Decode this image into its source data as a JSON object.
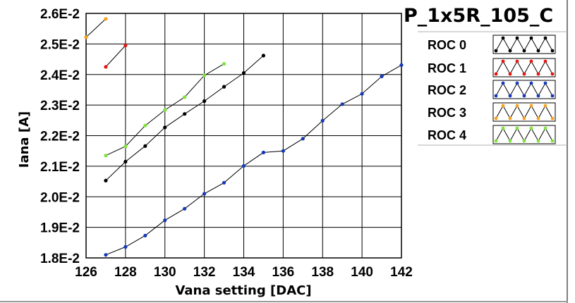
{
  "chart_data": {
    "type": "line",
    "title": "P_1x5R_105_C",
    "xlabel": "Vana setting [DAC]",
    "ylabel": "Iana [A]",
    "xlim": [
      126,
      142
    ],
    "ylim": [
      0.018,
      0.026
    ],
    "xticks": [
      126,
      128,
      130,
      132,
      134,
      136,
      138,
      140,
      142
    ],
    "yticks": [
      0.018,
      0.019,
      0.02,
      0.021,
      0.022,
      0.023,
      0.024,
      0.025,
      0.026
    ],
    "xtick_labels": [
      "126",
      "128",
      "130",
      "132",
      "134",
      "136",
      "138",
      "140",
      "142"
    ],
    "ytick_labels": [
      "1.8E-2",
      "1.9E-2",
      "2.0E-2",
      "2.1E-2",
      "2.2E-2",
      "2.3E-2",
      "2.4E-2",
      "2.5E-2",
      "2.6E-2"
    ],
    "grid": true,
    "legend_position": "right",
    "series": [
      {
        "name": "ROC 0",
        "color": "#000000",
        "x": [
          127,
          128,
          129,
          130,
          131,
          132,
          133,
          134,
          135
        ],
        "y": [
          0.02053,
          0.02115,
          0.02166,
          0.02227,
          0.02271,
          0.02313,
          0.0236,
          0.02405,
          0.02462
        ]
      },
      {
        "name": "ROC 1",
        "color": "#e8150f",
        "x": [
          127,
          128
        ],
        "y": [
          0.02425,
          0.02495
        ]
      },
      {
        "name": "ROC 2",
        "color": "#1438b8",
        "x": [
          127,
          128,
          129,
          130,
          131,
          132,
          133,
          134,
          135,
          136,
          137,
          138,
          139,
          140,
          141,
          142
        ],
        "y": [
          0.0181,
          0.01836,
          0.01873,
          0.01923,
          0.01961,
          0.0201,
          0.02046,
          0.02101,
          0.02145,
          0.0215,
          0.0219,
          0.02249,
          0.02303,
          0.02337,
          0.02394,
          0.02431
        ]
      },
      {
        "name": "ROC 3",
        "color": "#f7a11c",
        "x": [
          126,
          127
        ],
        "y": [
          0.02522,
          0.02582
        ]
      },
      {
        "name": "ROC 4",
        "color": "#7fe33a",
        "x": [
          127,
          128,
          129,
          130,
          131,
          132,
          133
        ],
        "y": [
          0.02135,
          0.02165,
          0.02233,
          0.02284,
          0.02326,
          0.02397,
          0.02435
        ]
      }
    ]
  }
}
